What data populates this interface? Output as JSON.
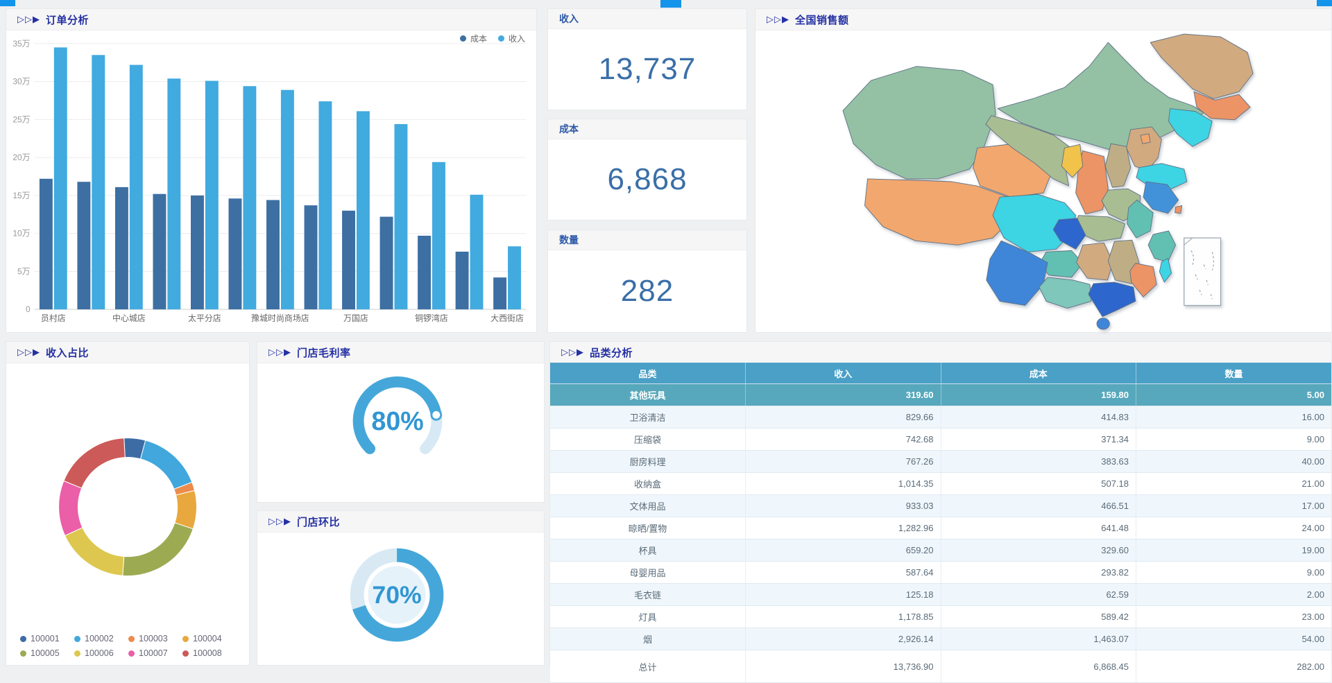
{
  "accent": {
    "tab_color": "#1494ea",
    "title_color": "#2531a4"
  },
  "panels": {
    "order_analysis": {
      "prefix": "▷▷▶",
      "title": "订单分析"
    },
    "kpi_revenue": {
      "label": "收入",
      "value": "13,737"
    },
    "kpi_cost": {
      "label": "成本",
      "value": "6,868"
    },
    "kpi_quantity": {
      "label": "数量",
      "value": "282"
    },
    "national_sales": {
      "prefix": "▷▷▶",
      "title": "全国销售额"
    },
    "revenue_share": {
      "prefix": "▷▷▶",
      "title": "收入占比"
    },
    "gross_margin": {
      "prefix": "▷▷▶",
      "title": "门店毛利率"
    },
    "store_mom": {
      "prefix": "▷▷▶",
      "title": "门店环比"
    },
    "category_analysis": {
      "prefix": "▷▷▶",
      "title": "品类分析"
    }
  },
  "chart_data": [
    {
      "id": "order_bar",
      "type": "bar",
      "title": "订单分析",
      "categories": [
        "员村店",
        "",
        "中心城店",
        "",
        "太平分店",
        "",
        "豫城时尚商场店",
        "",
        "万国店",
        "",
        "铜锣湾店",
        "",
        "大西街店"
      ],
      "series": [
        {
          "name": "成本",
          "color": "#3d6fa2",
          "values": [
            17.2,
            16.8,
            16.1,
            15.2,
            15.0,
            14.6,
            14.4,
            13.7,
            13.0,
            12.2,
            9.7,
            7.6,
            4.2
          ]
        },
        {
          "name": "收入",
          "color": "#41aadf",
          "values": [
            34.5,
            33.5,
            32.2,
            30.4,
            30.1,
            29.4,
            28.9,
            27.4,
            26.1,
            24.4,
            19.4,
            15.1,
            8.3
          ]
        }
      ],
      "unit": "万",
      "ylim": [
        0,
        35
      ],
      "y_ticks": [
        "0",
        "5万",
        "10万",
        "15万",
        "20万",
        "25万",
        "30万",
        "35万"
      ],
      "grid": true,
      "legend_position": "top-right"
    },
    {
      "id": "revenue_share_donut",
      "type": "pie",
      "title": "收入占比",
      "donut": true,
      "start_angle": -3,
      "unit": "%",
      "slices": [
        {
          "label": "100001",
          "value": 5,
          "color": "#3d6ca5"
        },
        {
          "label": "100002",
          "value": 15,
          "color": "#41a7dc"
        },
        {
          "label": "100003",
          "value": 2,
          "color": "#ec8c4c"
        },
        {
          "label": "100004",
          "value": 9,
          "color": "#e8a83e"
        },
        {
          "label": "100005",
          "value": 21,
          "color": "#9cab52"
        },
        {
          "label": "100006",
          "value": 17,
          "color": "#ddc74e"
        },
        {
          "label": "100007",
          "value": 13,
          "color": "#ea5fa8"
        },
        {
          "label": "100008",
          "value": 18,
          "color": "#cc5a58"
        }
      ]
    },
    {
      "id": "gross_margin_gauge",
      "type": "gauge",
      "title": "门店毛利率",
      "value": 80,
      "max": 100,
      "display": "80%",
      "arc_degrees": 270,
      "color": "#45a7d9",
      "track_color": "#d6e9f5",
      "text_color": "#3196d2"
    },
    {
      "id": "store_mom_ring",
      "type": "gauge",
      "title": "门店环比",
      "value": 70,
      "max": 100,
      "display": "70%",
      "arc_degrees": 360,
      "color": "#45a7d9",
      "track_color": "#d8e9f4",
      "inner_color": "#e6f2fa",
      "text_color": "#3196d2"
    },
    {
      "id": "category_table",
      "type": "table",
      "title": "品类分析",
      "headers": [
        "品类",
        "收入",
        "成本",
        "数量"
      ],
      "rows": [
        [
          "其他玩具",
          "319.60",
          "159.80",
          "5.00"
        ],
        [
          "卫浴清洁",
          "829.66",
          "414.83",
          "16.00"
        ],
        [
          "压缩袋",
          "742.68",
          "371.34",
          "9.00"
        ],
        [
          "厨房料理",
          "767.26",
          "383.63",
          "40.00"
        ],
        [
          "收纳盒",
          "1,014.35",
          "507.18",
          "21.00"
        ],
        [
          "文体用品",
          "933.03",
          "466.51",
          "17.00"
        ],
        [
          "晾晒/置物",
          "1,282.96",
          "641.48",
          "24.00"
        ],
        [
          "杯具",
          "659.20",
          "329.60",
          "19.00"
        ],
        [
          "母婴用品",
          "587.64",
          "293.82",
          "9.00"
        ],
        [
          "毛衣链",
          "125.18",
          "62.59",
          "2.00"
        ],
        [
          "灯具",
          "1,178.85",
          "589.42",
          "23.00"
        ],
        [
          "烟",
          "2,926.14",
          "1,463.07",
          "54.00"
        ]
      ],
      "total_row": [
        "总计",
        "13,736.90",
        "6,868.45",
        "282.00"
      ],
      "header_bg": "#4aa0c6",
      "highlight_row_bg": "#57a8bc",
      "alt_row_bg": "#f0f7fc"
    },
    {
      "id": "china_map",
      "type": "map",
      "title": "全国销售额",
      "palette": [
        "#94c1a4",
        "#f2a76e",
        "#d2aa80",
        "#ec9465",
        "#3dd4e4",
        "#4292da",
        "#2d66cc",
        "#62c0b2",
        "#f2c34a",
        "#a9bd93",
        "#bfae85",
        "#7fc6bb",
        "#3f86d8"
      ]
    }
  ]
}
